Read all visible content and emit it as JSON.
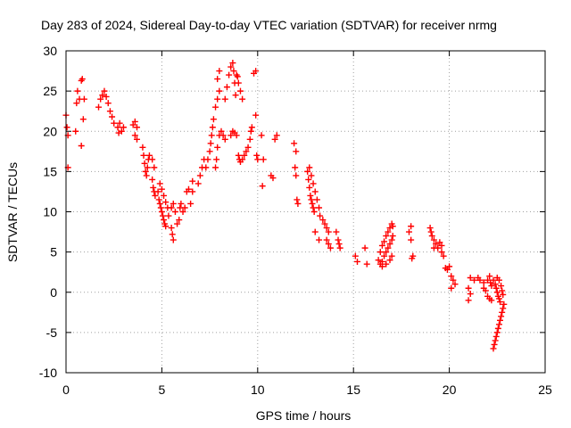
{
  "chart_data": {
    "type": "scatter",
    "title": "Day 283 of 2024, Sidereal Day-to-day VTEC variation (SDTVAR) for receiver nrmg",
    "xlabel": "GPS time / hours",
    "ylabel": "SDTVAR / TECUs",
    "xlim": [
      0,
      25
    ],
    "ylim": [
      -10,
      30
    ],
    "xticks": [
      0,
      5,
      10,
      15,
      20,
      25
    ],
    "yticks": [
      -10,
      -5,
      0,
      5,
      10,
      15,
      20,
      25,
      30
    ],
    "grid": true,
    "marker": "+",
    "color": "#ff0000",
    "series": [
      {
        "name": "SDTVAR",
        "points": [
          [
            0.0,
            22.0
          ],
          [
            0.05,
            20.5
          ],
          [
            0.1,
            15.5
          ],
          [
            0.1,
            19.5
          ],
          [
            0.5,
            20.0
          ],
          [
            0.55,
            23.5
          ],
          [
            0.6,
            25.0
          ],
          [
            0.7,
            24.0
          ],
          [
            0.8,
            26.3
          ],
          [
            0.85,
            26.5
          ],
          [
            0.8,
            18.2
          ],
          [
            0.9,
            21.5
          ],
          [
            0.95,
            24.0
          ],
          [
            1.7,
            23.0
          ],
          [
            1.8,
            24.0
          ],
          [
            1.9,
            24.5
          ],
          [
            2.0,
            25.0
          ],
          [
            2.1,
            24.3
          ],
          [
            2.2,
            23.5
          ],
          [
            2.3,
            22.5
          ],
          [
            2.4,
            21.8
          ],
          [
            2.5,
            21.0
          ],
          [
            2.7,
            20.5
          ],
          [
            2.75,
            19.8
          ],
          [
            2.8,
            21.0
          ],
          [
            2.9,
            20.0
          ],
          [
            3.0,
            20.5
          ],
          [
            3.5,
            20.8
          ],
          [
            3.6,
            21.2
          ],
          [
            3.7,
            20.5
          ],
          [
            3.6,
            19.5
          ],
          [
            3.7,
            19.0
          ],
          [
            4.0,
            18.0
          ],
          [
            4.05,
            17.0
          ],
          [
            4.1,
            16.0
          ],
          [
            4.15,
            15.0
          ],
          [
            4.2,
            14.5
          ],
          [
            4.25,
            15.5
          ],
          [
            4.3,
            16.5
          ],
          [
            4.35,
            17.0
          ],
          [
            4.5,
            14.0
          ],
          [
            4.55,
            13.0
          ],
          [
            4.6,
            12.5
          ],
          [
            4.65,
            12.0
          ],
          [
            4.5,
            16.5
          ],
          [
            4.6,
            15.5
          ],
          [
            4.8,
            12.5
          ],
          [
            4.85,
            11.5
          ],
          [
            4.9,
            11.0
          ],
          [
            4.95,
            10.5
          ],
          [
            5.0,
            10.0
          ],
          [
            5.05,
            9.5
          ],
          [
            5.1,
            9.0
          ],
          [
            5.15,
            8.5
          ],
          [
            5.2,
            8.2
          ],
          [
            4.9,
            13.5
          ],
          [
            5.0,
            12.8
          ],
          [
            5.1,
            12.0
          ],
          [
            5.2,
            11.2
          ],
          [
            5.3,
            10.5
          ],
          [
            5.35,
            9.5
          ],
          [
            5.5,
            8.0
          ],
          [
            5.55,
            7.2
          ],
          [
            5.6,
            6.5
          ],
          [
            5.5,
            10.5
          ],
          [
            5.6,
            11.0
          ],
          [
            5.7,
            10.0
          ],
          [
            5.8,
            8.5
          ],
          [
            5.9,
            9.0
          ],
          [
            5.95,
            10.5
          ],
          [
            6.0,
            11.0
          ],
          [
            6.1,
            10.0
          ],
          [
            6.2,
            10.5
          ],
          [
            6.3,
            12.5
          ],
          [
            6.4,
            12.8
          ],
          [
            6.5,
            11.0
          ],
          [
            6.6,
            12.5
          ],
          [
            6.6,
            13.8
          ],
          [
            6.9,
            13.5
          ],
          [
            7.0,
            14.5
          ],
          [
            7.1,
            15.5
          ],
          [
            7.2,
            16.5
          ],
          [
            7.3,
            15.5
          ],
          [
            7.4,
            16.5
          ],
          [
            7.5,
            17.5
          ],
          [
            7.55,
            18.5
          ],
          [
            7.6,
            19.5
          ],
          [
            7.65,
            20.5
          ],
          [
            7.7,
            21.5
          ],
          [
            7.8,
            15.5
          ],
          [
            7.85,
            16.5
          ],
          [
            7.9,
            18.0
          ],
          [
            8.0,
            19.5
          ],
          [
            8.1,
            20.0
          ],
          [
            8.2,
            19.5
          ],
          [
            8.3,
            19.0
          ],
          [
            7.8,
            23.0
          ],
          [
            7.9,
            24.0
          ],
          [
            8.0,
            25.0
          ],
          [
            7.9,
            26.5
          ],
          [
            8.0,
            27.5
          ],
          [
            8.3,
            24.0
          ],
          [
            8.4,
            25.5
          ],
          [
            8.5,
            27.0
          ],
          [
            8.6,
            28.0
          ],
          [
            8.7,
            28.5
          ],
          [
            8.75,
            27.5
          ],
          [
            8.8,
            26.0
          ],
          [
            8.85,
            24.5
          ],
          [
            8.6,
            19.5
          ],
          [
            8.7,
            20.0
          ],
          [
            8.8,
            19.8
          ],
          [
            8.9,
            19.5
          ],
          [
            8.9,
            27.0
          ],
          [
            8.95,
            26.8
          ],
          [
            9.0,
            26.0
          ],
          [
            9.1,
            25.0
          ],
          [
            9.2,
            24.0
          ],
          [
            9.0,
            17.0
          ],
          [
            9.05,
            16.5
          ],
          [
            9.1,
            16.2
          ],
          [
            9.2,
            16.5
          ],
          [
            9.3,
            17.0
          ],
          [
            9.4,
            17.5
          ],
          [
            9.5,
            18.0
          ],
          [
            9.6,
            19.0
          ],
          [
            9.65,
            20.0
          ],
          [
            9.7,
            20.5
          ],
          [
            9.8,
            27.2
          ],
          [
            9.9,
            27.5
          ],
          [
            9.9,
            22.0
          ],
          [
            9.95,
            17.0
          ],
          [
            10.0,
            16.5
          ],
          [
            10.2,
            19.5
          ],
          [
            10.3,
            16.5
          ],
          [
            10.25,
            13.2
          ],
          [
            10.7,
            14.5
          ],
          [
            10.8,
            14.2
          ],
          [
            10.9,
            19.0
          ],
          [
            11.0,
            19.5
          ],
          [
            11.9,
            18.5
          ],
          [
            11.95,
            15.5
          ],
          [
            12.0,
            14.5
          ],
          [
            12.05,
            11.5
          ],
          [
            12.1,
            11.0
          ],
          [
            12.0,
            17.5
          ],
          [
            12.6,
            15.0
          ],
          [
            12.65,
            14.0
          ],
          [
            12.7,
            13.0
          ],
          [
            12.75,
            12.0
          ],
          [
            12.8,
            11.5
          ],
          [
            12.85,
            11.0
          ],
          [
            12.9,
            10.5
          ],
          [
            12.95,
            10.0
          ],
          [
            12.7,
            15.5
          ],
          [
            12.8,
            14.5
          ],
          [
            12.9,
            13.5
          ],
          [
            13.0,
            12.5
          ],
          [
            13.1,
            11.5
          ],
          [
            13.2,
            10.5
          ],
          [
            13.25,
            9.5
          ],
          [
            13.4,
            9.0
          ],
          [
            13.5,
            8.5
          ],
          [
            13.6,
            8.0
          ],
          [
            13.7,
            7.5
          ],
          [
            13.6,
            6.5
          ],
          [
            13.7,
            6.0
          ],
          [
            13.8,
            5.5
          ],
          [
            13.0,
            7.5
          ],
          [
            13.2,
            6.5
          ],
          [
            14.1,
            7.5
          ],
          [
            14.2,
            6.5
          ],
          [
            14.25,
            6.0
          ],
          [
            14.3,
            5.5
          ],
          [
            15.1,
            4.5
          ],
          [
            15.2,
            3.8
          ],
          [
            15.6,
            5.5
          ],
          [
            15.7,
            3.5
          ],
          [
            16.3,
            4.0
          ],
          [
            16.4,
            3.5
          ],
          [
            16.5,
            3.8
          ],
          [
            16.6,
            4.5
          ],
          [
            16.7,
            5.0
          ],
          [
            16.8,
            5.5
          ],
          [
            16.9,
            6.0
          ],
          [
            17.0,
            6.5
          ],
          [
            17.05,
            7.0
          ],
          [
            16.4,
            5.0
          ],
          [
            16.5,
            5.8
          ],
          [
            16.6,
            6.3
          ],
          [
            16.7,
            7.0
          ],
          [
            16.8,
            7.5
          ],
          [
            16.9,
            8.0
          ],
          [
            17.0,
            8.5
          ],
          [
            17.05,
            8.2
          ],
          [
            16.5,
            3.2
          ],
          [
            16.7,
            3.5
          ],
          [
            16.9,
            4.0
          ],
          [
            17.0,
            4.5
          ],
          [
            17.9,
            7.5
          ],
          [
            18.0,
            8.2
          ],
          [
            18.0,
            6.5
          ],
          [
            18.1,
            4.5
          ],
          [
            18.05,
            4.2
          ],
          [
            19.0,
            8.0
          ],
          [
            19.05,
            7.5
          ],
          [
            19.1,
            7.0
          ],
          [
            19.2,
            6.5
          ],
          [
            19.3,
            6.0
          ],
          [
            19.4,
            5.5
          ],
          [
            19.6,
            5.0
          ],
          [
            19.7,
            4.5
          ],
          [
            19.2,
            5.5
          ],
          [
            19.5,
            6.2
          ],
          [
            19.6,
            5.8
          ],
          [
            19.8,
            3.0
          ],
          [
            19.9,
            2.8
          ],
          [
            20.0,
            3.2
          ],
          [
            20.1,
            2.0
          ],
          [
            20.2,
            1.5
          ],
          [
            20.1,
            0.5
          ],
          [
            20.3,
            1.0
          ],
          [
            21.0,
            0.5
          ],
          [
            21.1,
            -0.2
          ],
          [
            21.0,
            -1.0
          ],
          [
            21.1,
            1.8
          ],
          [
            21.3,
            1.5
          ],
          [
            21.5,
            1.8
          ],
          [
            21.6,
            1.5
          ],
          [
            21.8,
            1.2
          ],
          [
            22.0,
            1.5
          ],
          [
            22.1,
            2.0
          ],
          [
            22.15,
            1.2
          ],
          [
            22.2,
            0.8
          ],
          [
            21.8,
            0.5
          ],
          [
            21.9,
            0.2
          ],
          [
            22.0,
            -0.5
          ],
          [
            22.1,
            -0.8
          ],
          [
            22.2,
            -1.0
          ],
          [
            22.3,
            1.5
          ],
          [
            22.4,
            1.0
          ],
          [
            22.45,
            0.5
          ],
          [
            22.5,
            0.0
          ],
          [
            22.55,
            -0.5
          ],
          [
            22.6,
            -0.8
          ],
          [
            22.65,
            -1.2
          ],
          [
            22.5,
            1.8
          ],
          [
            22.6,
            1.5
          ],
          [
            22.7,
            0.8
          ],
          [
            22.75,
            0.2
          ],
          [
            22.8,
            -0.3
          ],
          [
            22.3,
            -7.0
          ],
          [
            22.35,
            -6.5
          ],
          [
            22.4,
            -6.0
          ],
          [
            22.45,
            -5.5
          ],
          [
            22.5,
            -5.0
          ],
          [
            22.55,
            -4.5
          ],
          [
            22.6,
            -4.0
          ],
          [
            22.65,
            -3.5
          ],
          [
            22.7,
            -3.0
          ],
          [
            22.75,
            -2.5
          ],
          [
            22.8,
            -2.0
          ],
          [
            22.85,
            -1.5
          ]
        ]
      }
    ]
  }
}
